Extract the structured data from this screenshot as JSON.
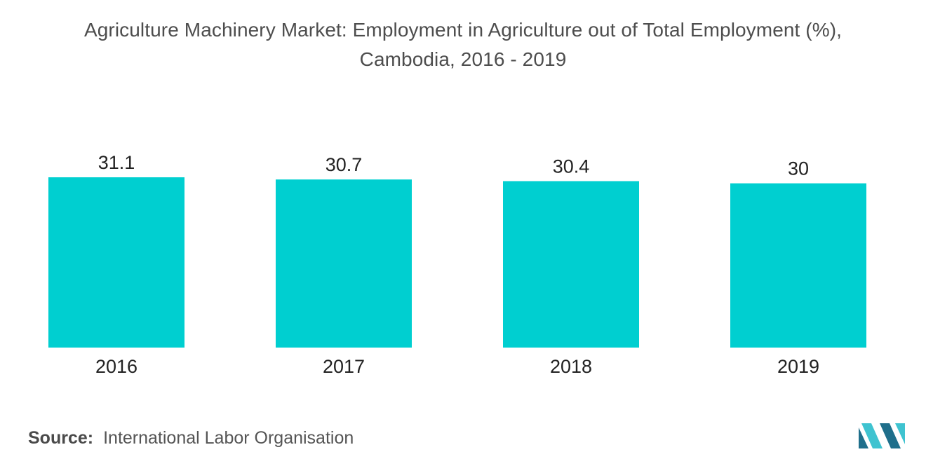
{
  "title": {
    "line1": "Agriculture Machinery Market: Employment in Agriculture out of Total Employment (%),",
    "line2": "Cambodia, 2016 - 2019"
  },
  "source": {
    "label": "Source:",
    "text": "International Labor Organisation"
  },
  "logo": {
    "icon": "mordor-intelligence-logo-icon"
  },
  "colors": {
    "bar": "#00cfd0",
    "logo_dark": "#1f6f8b",
    "logo_light": "#3fc3d0"
  },
  "chart_data": {
    "type": "bar",
    "categories": [
      "2016",
      "2017",
      "2018",
      "2019"
    ],
    "values": [
      31.1,
      30.7,
      30.4,
      30
    ],
    "value_labels": [
      "31.1",
      "30.7",
      "30.4",
      "30"
    ],
    "title": "Agriculture Machinery Market: Employment in Agriculture out of Total Employment (%), Cambodia, 2016 - 2019",
    "xlabel": "",
    "ylabel": "",
    "ylim": [
      0,
      31.1
    ],
    "grid": false,
    "legend": "none"
  }
}
